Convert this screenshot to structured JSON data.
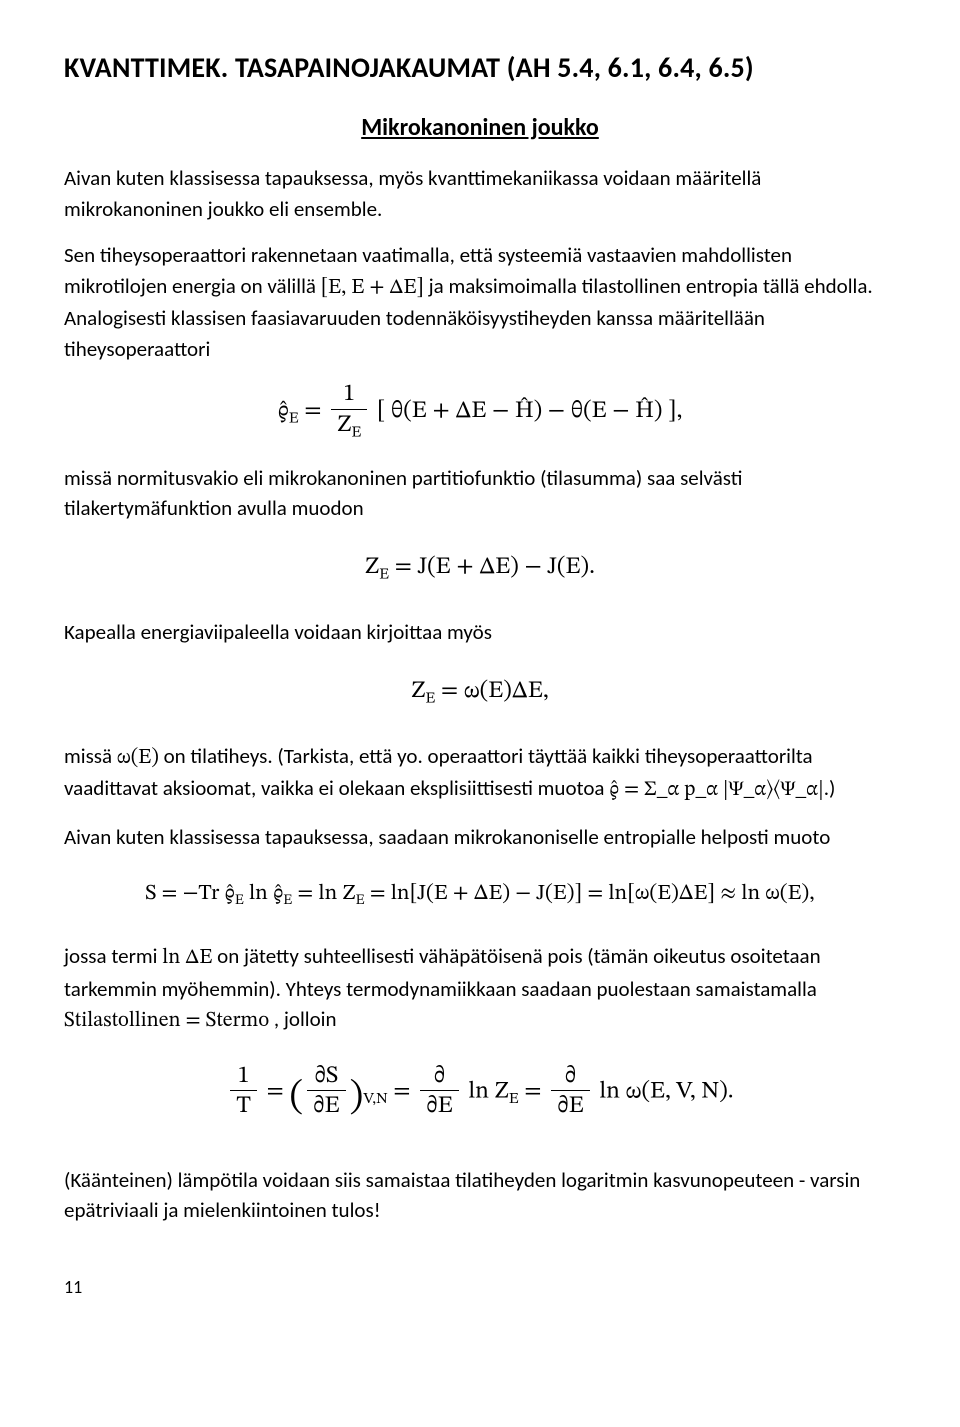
{
  "title": "KVANTTIMEK. TASAPAINOJAKAUMAT (AH 5.4, 6.1, 6.4, 6.5)",
  "subtitle": "Mikrokanoninen joukko",
  "p1": "Aivan kuten klassisessa tapauksessa, myös kvanttimekaniikassa voidaan määritellä mikrokanoninen joukko eli ensemble.",
  "p2a": "Sen tiheysoperaattori rakennetaan vaatimalla, että systeemiä vastaavien mahdollisten mikrotilojen energia on välillä ",
  "p2_math": "[E, E + ΔE]",
  "p2b": " ja maksimoimalla tilastollinen entropia tällä ehdolla. Analogisesti klassisen faasiavaruuden todennäköisyystiheyden kanssa määritellään tiheysoperaattori",
  "eq1": "ϱ̂_E = (1 / Z_E) [ θ(E + ΔE − Ĥ) − θ(E − Ĥ) ],",
  "p3": "missä normitusvakio eli mikrokanoninen partitiofunktio (tilasumma) saa selvästi tilakertymäfunktion avulla muodon",
  "eq2": "Z_E = J(E + ΔE) − J(E).",
  "p4": "Kapealla energiaviipaleella voidaan kirjoittaa myös",
  "eq3": "Z_E = ω(E)ΔE,",
  "p5a": "missä ",
  "p5_math1": "ω(E)",
  "p5b": " on tilatiheys. (Tarkista, että yo. operaattori täyttää kaikki tiheysoperaattorilta vaadittavat aksioomat, vaikka ei olekaan eksplisiittisesti muotoa ",
  "p5_math2": "ϱ̂ = Σ_α p_α |Ψ_α⟩⟨Ψ_α|",
  "p5c": ".)",
  "p6": "Aivan kuten klassisessa tapauksessa, saadaan mikrokanoniselle entropialle helposti muoto",
  "eq4": "S = −Tr ϱ̂_E ln ϱ̂_E = ln Z_E = ln[J(E + ΔE) − J(E)] = ln[ω(E)ΔE] ≈ ln ω(E),",
  "p7a": "jossa termi ",
  "p7_math1": "ln ΔE",
  "p7b": " on jätetty suhteellisesti vähäpätöisenä pois (tämän oikeutus osoitetaan tarkemmin myöhemmin). Yhteys termodynamiikkaan saadaan puolestaan samaistamalla ",
  "p7_math2": "S_tilastollinen = S_termo",
  "p7c": " , jolloin",
  "eq5": "1/T = (∂S/∂E)_{V,N} = (∂/∂E) ln Z_E = (∂/∂E) ln ω(E, V, N).",
  "p8": "(Käänteinen) lämpötila voidaan siis samaistaa tilatiheyden logaritmin kasvunopeuteen - varsin epätriviaali ja mielenkiintoinen tulos!",
  "pageno": "11"
}
